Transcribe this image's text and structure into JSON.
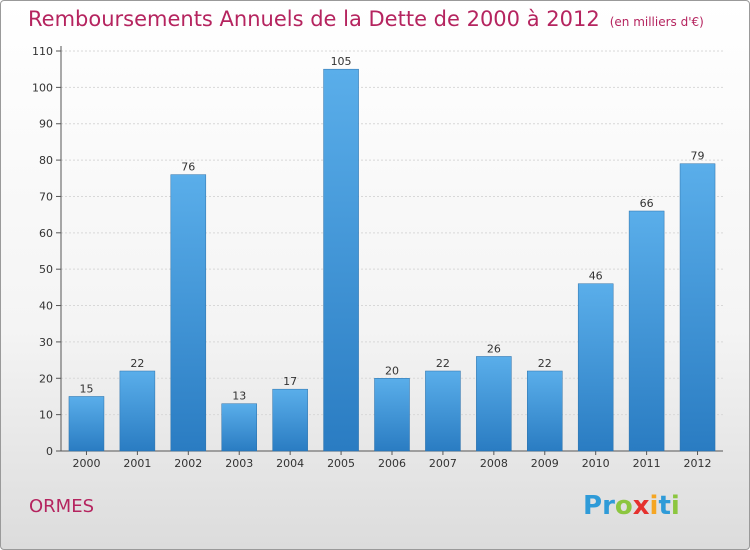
{
  "header": {
    "title": "Remboursements Annuels de la Dette de 2000 à 2012",
    "subtitle": "(en milliers d'€)"
  },
  "footer": {
    "commune": "ORMES",
    "logo_letters": [
      "P",
      "r",
      "o",
      "x",
      "i",
      "t",
      "i"
    ],
    "logo_colors": [
      "#2f9bd8",
      "#2f9bd8",
      "#8cc63f",
      "#e5312e",
      "#f5a623",
      "#2f9bd8",
      "#8cc63f"
    ]
  },
  "colors": {
    "title": "#b5245f",
    "bar_light": "#5aaeea",
    "bar_dark": "#2a7cc2"
  },
  "chart_data": {
    "type": "bar",
    "title": "Remboursements Annuels de la Dette de 2000 à 2012",
    "categories": [
      "2000",
      "2001",
      "2002",
      "2003",
      "2004",
      "2005",
      "2006",
      "2007",
      "2008",
      "2009",
      "2010",
      "2011",
      "2012"
    ],
    "values": [
      15,
      22,
      76,
      13,
      17,
      105,
      20,
      22,
      26,
      22,
      46,
      66,
      79
    ],
    "xlabel": "",
    "ylabel": "",
    "ylim": [
      0,
      110
    ],
    "yticks": [
      0,
      10,
      20,
      30,
      40,
      50,
      60,
      70,
      80,
      90,
      100,
      110
    ],
    "grid": true,
    "legend": "none"
  }
}
